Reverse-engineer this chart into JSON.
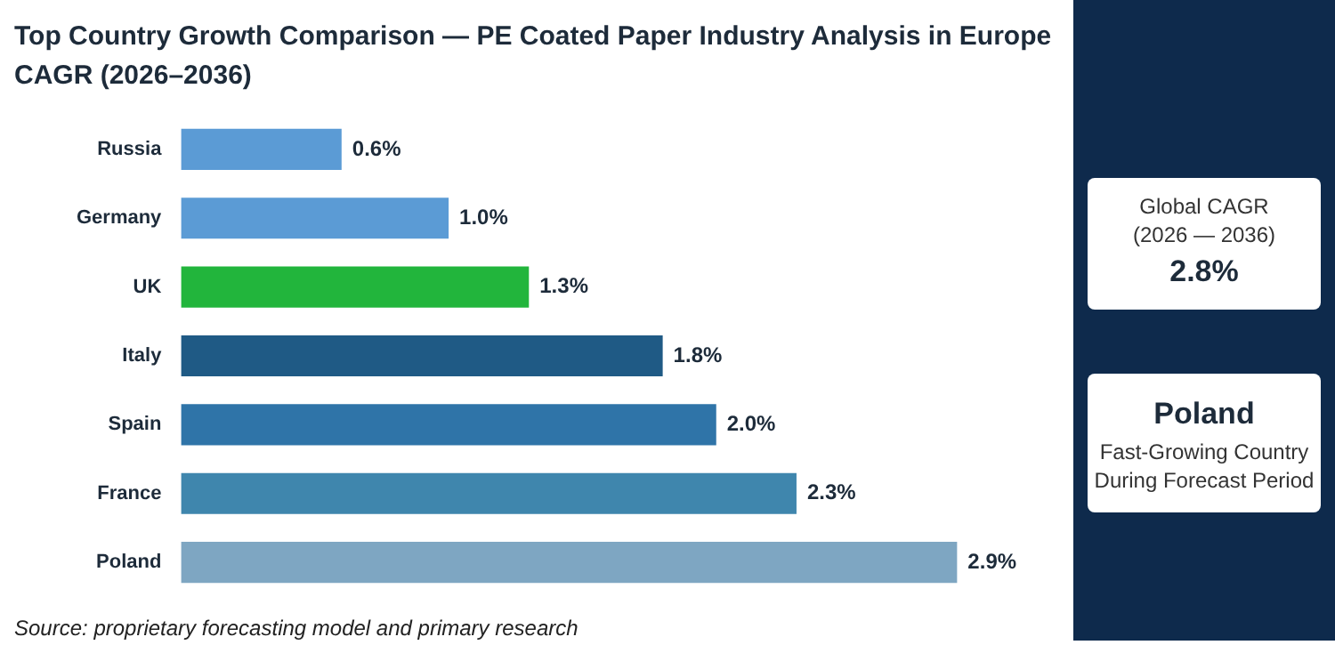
{
  "chart_data": {
    "type": "bar",
    "orientation": "horizontal",
    "title": "Top Country Growth Comparison — PE Coated Paper Industry Analysis in Europe",
    "subtitle": "CAGR (2026–2036)",
    "categories": [
      "Russia",
      "Germany",
      "UK",
      "Italy",
      "Spain",
      "France",
      "Poland"
    ],
    "values": [
      0.6,
      1.0,
      1.3,
      1.8,
      2.0,
      2.3,
      2.9
    ],
    "value_labels": [
      "0.6%",
      "1.0%",
      "1.3%",
      "1.8%",
      "2.0%",
      "2.3%",
      "2.9%"
    ],
    "colors": [
      "#5b9bd5",
      "#5b9bd5",
      "#22b53c",
      "#1f5a85",
      "#2f74a8",
      "#3f86ad",
      "#7ea6c2"
    ],
    "annotations": [
      "Source: proprietary forecasting model and primary research",
      "Global CAGR",
      "(2026 — 2036)",
      "2.8%",
      "Poland",
      "Fast-Growing Country",
      "During Forecast Period"
    ]
  }
}
